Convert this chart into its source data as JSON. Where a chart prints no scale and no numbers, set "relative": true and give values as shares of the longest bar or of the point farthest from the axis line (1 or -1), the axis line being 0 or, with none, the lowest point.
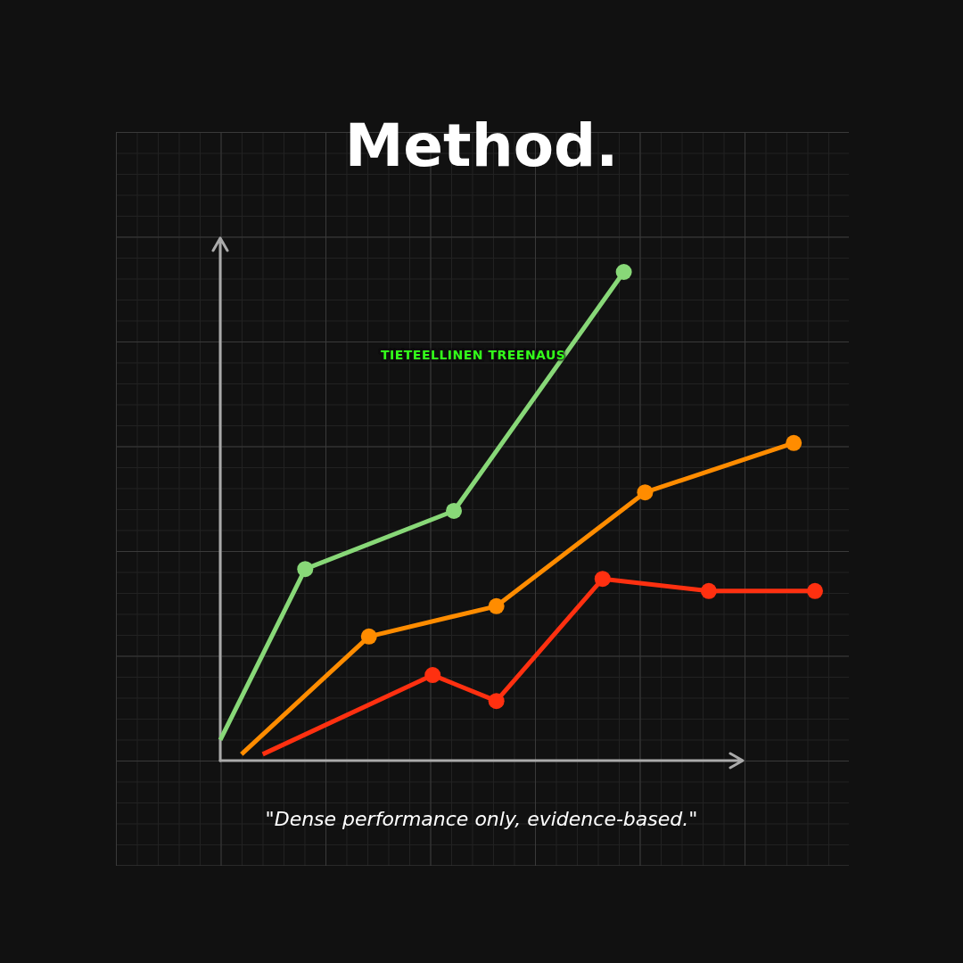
{
  "chart_data": {
    "type": "line",
    "title": "Method.",
    "relative": true,
    "tick_labels": false,
    "grid": false,
    "legend": false,
    "marker": "circle",
    "line_style": "solid",
    "annotations": [
      "TIETEELLINEN TREENAUS",
      "\"Dense performance only, evidence-based.\""
    ],
    "categories": [
      null,
      null,
      null,
      null,
      null,
      null,
      null,
      null,
      null,
      null,
      null,
      null,
      null,
      null,
      null,
      null,
      null,
      null,
      null,
      null,
      null,
      null,
      null,
      null,
      null,
      null,
      null,
      null,
      null
    ],
    "series": [
      {
        "color": "#88d878",
        "values": [
          0.042,
          null,
          null,
          null,
          0.392,
          null,
          null,
          null,
          null,
          null,
          null,
          0.511,
          null,
          null,
          null,
          null,
          null,
          null,
          null,
          1,
          null,
          null,
          null,
          null,
          null,
          null,
          null,
          null,
          null
        ]
      },
      {
        "color": "#ff8c00",
        "values": [
          null,
          0.013,
          null,
          null,
          null,
          null,
          null,
          0.254,
          null,
          null,
          null,
          null,
          null,
          0.316,
          null,
          null,
          null,
          null,
          null,
          null,
          0.549,
          null,
          null,
          null,
          null,
          null,
          null,
          0.65,
          null
        ]
      },
      {
        "color": "#ff3010",
        "values": [
          null,
          null,
          0.013,
          null,
          null,
          null,
          null,
          null,
          null,
          null,
          0.175,
          null,
          null,
          0.122,
          null,
          null,
          null,
          null,
          0.372,
          null,
          null,
          null,
          null,
          0.347,
          null,
          null,
          null,
          null,
          0.347
        ]
      }
    ]
  }
}
